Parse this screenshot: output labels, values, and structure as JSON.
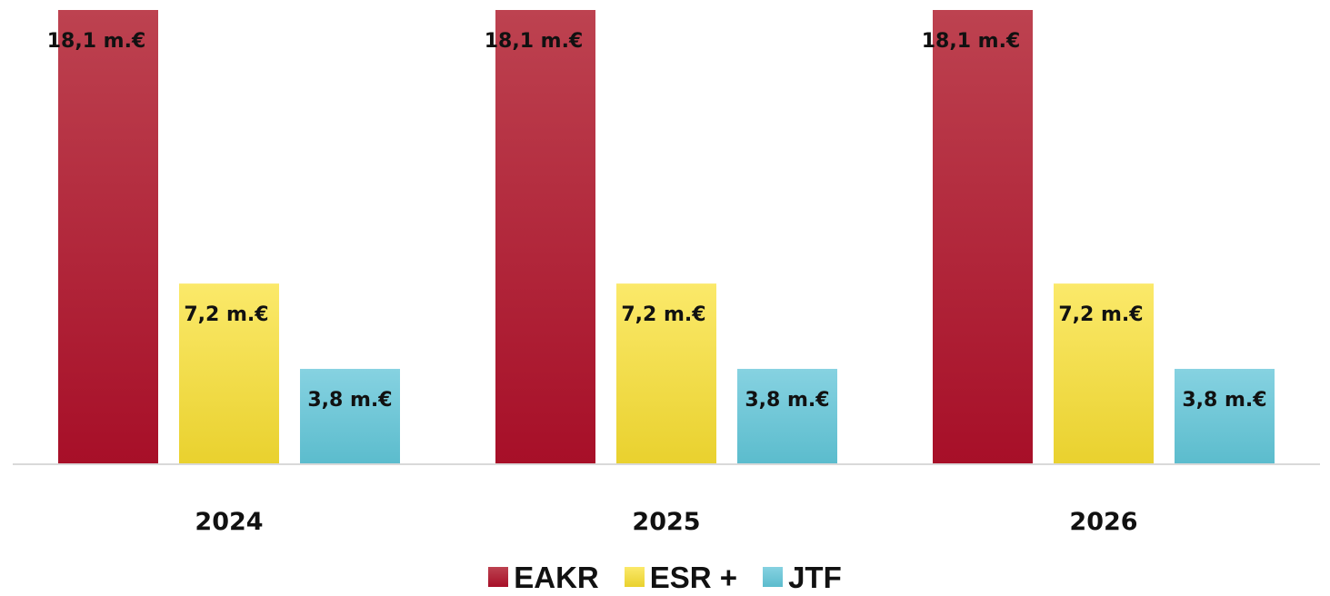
{
  "chart_data": {
    "type": "bar",
    "categories": [
      "2024",
      "2025",
      "2026"
    ],
    "series": [
      {
        "name": "EAKR",
        "values": [
          18.1,
          18.1,
          18.1
        ],
        "labels": [
          "18,1 m.€",
          "18,1 m.€",
          "18,1 m.€"
        ],
        "color_top": "#bd4250",
        "color_bottom": "#a70f28"
      },
      {
        "name": "ESR +",
        "values": [
          7.2,
          7.2,
          7.2
        ],
        "labels": [
          "7,2 m.€",
          "7,2 m.€",
          "7,2 m.€"
        ],
        "color_top": "#fbe96a",
        "color_bottom": "#e9d12e"
      },
      {
        "name": "JTF",
        "values": [
          3.8,
          3.8,
          3.8
        ],
        "labels": [
          "3,8 m.€",
          "3,8 m.€",
          "3,8 m.€"
        ],
        "color_top": "#86d2e1",
        "color_bottom": "#5bbccd"
      }
    ],
    "ylim": [
      0,
      18.1
    ],
    "grid": false,
    "legend_position": "bottom",
    "axis_color": "#d9d9d9"
  }
}
